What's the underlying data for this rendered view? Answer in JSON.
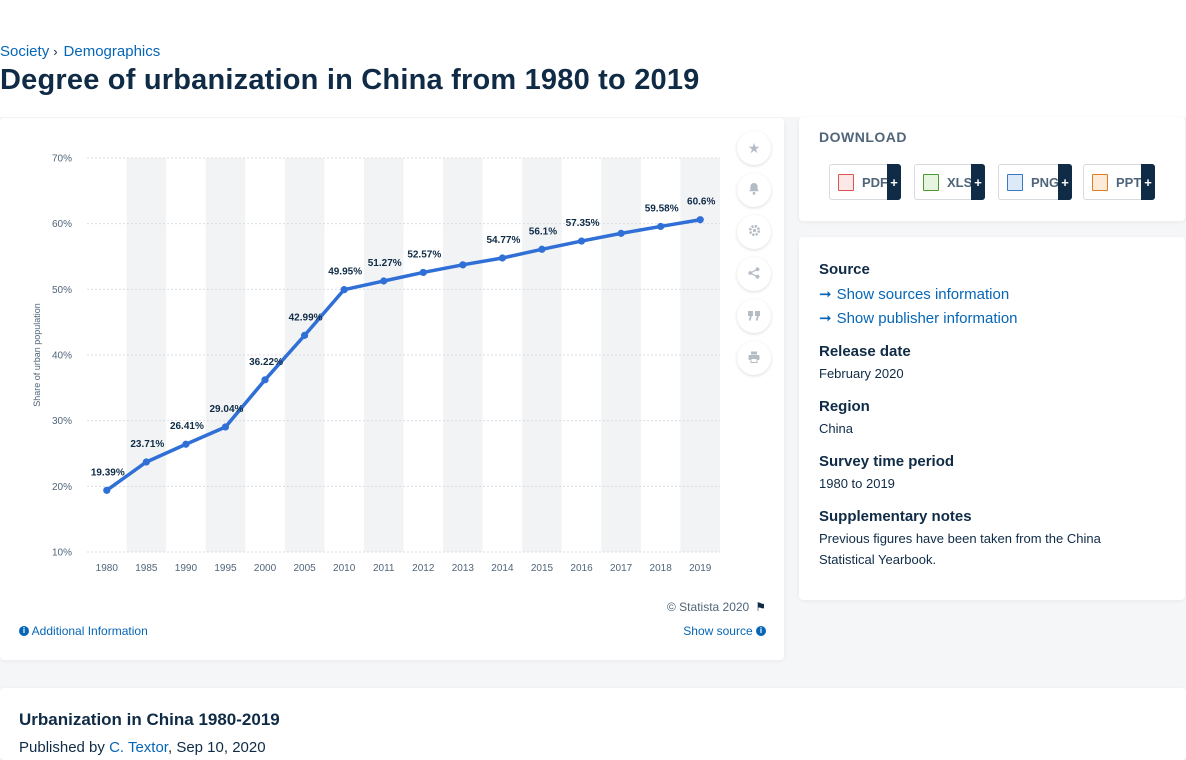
{
  "breadcrumb": {
    "items": [
      "Society",
      "Demographics"
    ],
    "separator": "›"
  },
  "page_title": "Degree of urbanization in China from 1980 to 2019",
  "chart": {
    "credit": "© Statista 2020",
    "additional_info": "Additional Information",
    "show_source": "Show source"
  },
  "chart_data": {
    "type": "line",
    "categories": [
      "1980",
      "1985",
      "1990",
      "1995",
      "2000",
      "2005",
      "2010",
      "2011",
      "2012",
      "2013",
      "2014",
      "2015",
      "2016",
      "2017",
      "2018",
      "2019"
    ],
    "values": [
      19.39,
      23.71,
      26.41,
      29.04,
      36.22,
      42.99,
      49.95,
      51.27,
      52.57,
      53.73,
      54.77,
      56.1,
      57.35,
      58.52,
      59.58,
      60.6
    ],
    "data_labels": [
      "19.39%",
      "23.71%",
      "26.41%",
      "29.04%",
      "36.22%",
      "42.99%",
      "49.95%",
      "51.27%",
      "52.57%",
      "",
      "54.77%",
      "56.1%",
      "57.35%",
      "",
      "59.58%",
      "60.6%"
    ],
    "ylabel": "Share of urban population",
    "xlabel": "",
    "ylim": [
      10,
      70
    ],
    "yticks": [
      "10%",
      "20%",
      "30%",
      "40%",
      "50%",
      "60%",
      "70%"
    ],
    "line_color": "#2f6fd6",
    "band_color": "#f2f3f5",
    "grid": true
  },
  "download": {
    "title": "DOWNLOAD",
    "buttons": [
      {
        "label": "PDF",
        "plus": "+"
      },
      {
        "label": "XLS",
        "plus": "+"
      },
      {
        "label": "PNG",
        "plus": "+"
      },
      {
        "label": "PPT",
        "plus": "+"
      }
    ]
  },
  "info": {
    "source_heading": "Source",
    "show_sources": "Show sources information",
    "show_publisher": "Show publisher information",
    "release_heading": "Release date",
    "release_value": "February 2020",
    "region_heading": "Region",
    "region_value": "China",
    "survey_heading": "Survey time period",
    "survey_value": "1980 to 2019",
    "notes_heading": "Supplementary notes",
    "notes_value": "Previous figures have been taken from the China Statistical Yearbook."
  },
  "bottom": {
    "title": "Urbanization in China 1980-2019",
    "published_by": "Published by ",
    "author": "C. Textor",
    "date": ", Sep 10, 2020"
  }
}
